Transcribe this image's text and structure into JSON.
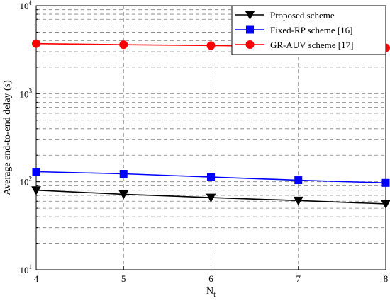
{
  "chart_data": {
    "type": "line",
    "title": "",
    "xlabel_main": "N",
    "xlabel_sub": "t",
    "ylabel": "Average end-to-end delay (s)",
    "x": [
      4,
      5,
      6,
      7,
      8
    ],
    "xlim": [
      4,
      8
    ],
    "ylim": [
      10,
      10000
    ],
    "yscale": "log",
    "grid": true,
    "legend_position": "top-right",
    "y_ticks": [
      {
        "value": 10,
        "base": "10",
        "exp": "1"
      },
      {
        "value": 100,
        "base": "10",
        "exp": "2"
      },
      {
        "value": 1000,
        "base": "10",
        "exp": "3"
      },
      {
        "value": 10000,
        "base": "10",
        "exp": "4"
      }
    ],
    "series": [
      {
        "name": "Proposed scheme",
        "color": "#000000",
        "marker": "triangle-down",
        "values": [
          80,
          72,
          66,
          61,
          56
        ]
      },
      {
        "name": "Fixed-RP scheme [16]",
        "color": "#0000ff",
        "marker": "square",
        "values": [
          130,
          123,
          113,
          104,
          97
        ]
      },
      {
        "name": "GR-AUV scheme [17]",
        "color": "#ff0000",
        "marker": "circle",
        "values": [
          3700,
          3600,
          3520,
          3420,
          3320
        ]
      }
    ]
  }
}
